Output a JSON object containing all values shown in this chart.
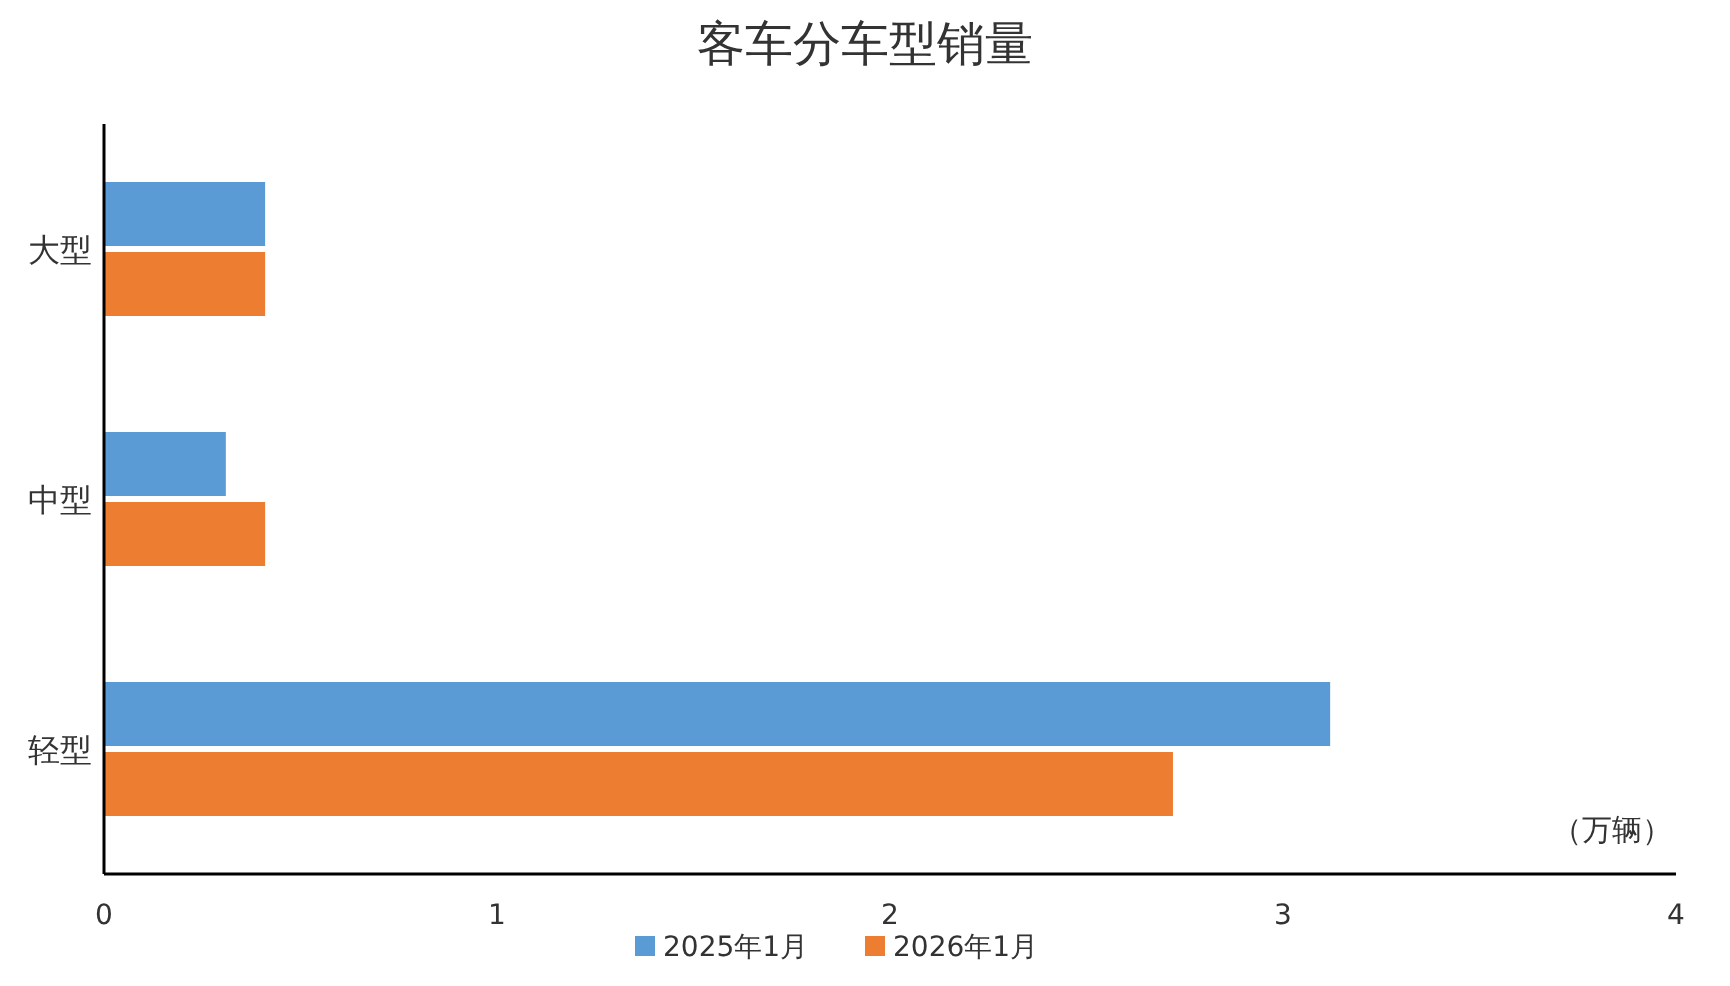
{
  "chart_data": {
    "type": "bar",
    "orientation": "horizontal",
    "title": "客车分车型销量",
    "xlabel": "（万辆）",
    "categories": [
      "大型",
      "中型",
      "轻型"
    ],
    "series": [
      {
        "name": "2025年1月",
        "color": "#5b9bd5",
        "values": [
          0.41,
          0.31,
          3.12
        ]
      },
      {
        "name": "2026年1月",
        "color": "#ed7d31",
        "values": [
          0.41,
          0.41,
          2.72
        ]
      }
    ],
    "xlim": [
      0,
      4
    ],
    "xticks": [
      0,
      1,
      2,
      3,
      4
    ],
    "legend": "bottom"
  }
}
